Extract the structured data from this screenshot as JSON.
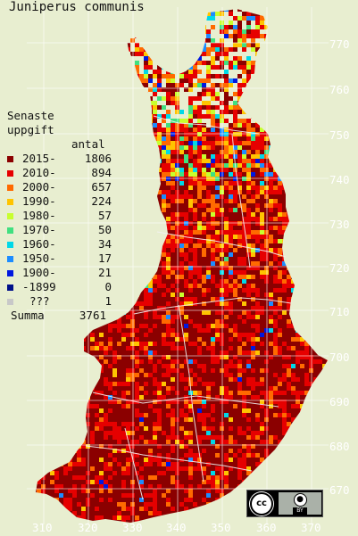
{
  "title": "Juniperus communis",
  "legend": {
    "heading_line1": "Senaste",
    "heading_line2": "uppgift",
    "count_heading": "antal",
    "rows": [
      {
        "period": "2015-",
        "count": "1806",
        "color": "#8b0000"
      },
      {
        "period": "2010-",
        "count": "894",
        "color": "#e60000"
      },
      {
        "period": "2000-",
        "count": "657",
        "color": "#ff6a00"
      },
      {
        "period": "1990-",
        "count": "224",
        "color": "#ffc400"
      },
      {
        "period": "1980-",
        "count": "57",
        "color": "#c8ff2e"
      },
      {
        "period": "1970-",
        "count": "50",
        "color": "#40e080"
      },
      {
        "period": "1960-",
        "count": "34",
        "color": "#00d8e8"
      },
      {
        "period": "1950-",
        "count": "17",
        "color": "#1c8cff"
      },
      {
        "period": "1900-",
        "count": "21",
        "color": "#0018e0"
      },
      {
        "period": "-1899",
        "count": "0",
        "color": "#00108a"
      },
      {
        "period": "???",
        "count": "1",
        "color": "#c8c8c8"
      }
    ],
    "total_label": "Summa",
    "total_count": "3761"
  },
  "y_axis_labels": [
    "770",
    "760",
    "750",
    "740",
    "730",
    "720",
    "710",
    "700",
    "690",
    "680",
    "670"
  ],
  "x_axis_labels": [
    "310",
    "320",
    "330",
    "340",
    "350",
    "360",
    "370"
  ],
  "license": {
    "cc_text": "cc",
    "by_icon": "person-icon",
    "by_text": "BY"
  },
  "colors": {
    "background": "#e8eed0",
    "grid": "#ffffff",
    "regions": "#f2f2f2"
  }
}
